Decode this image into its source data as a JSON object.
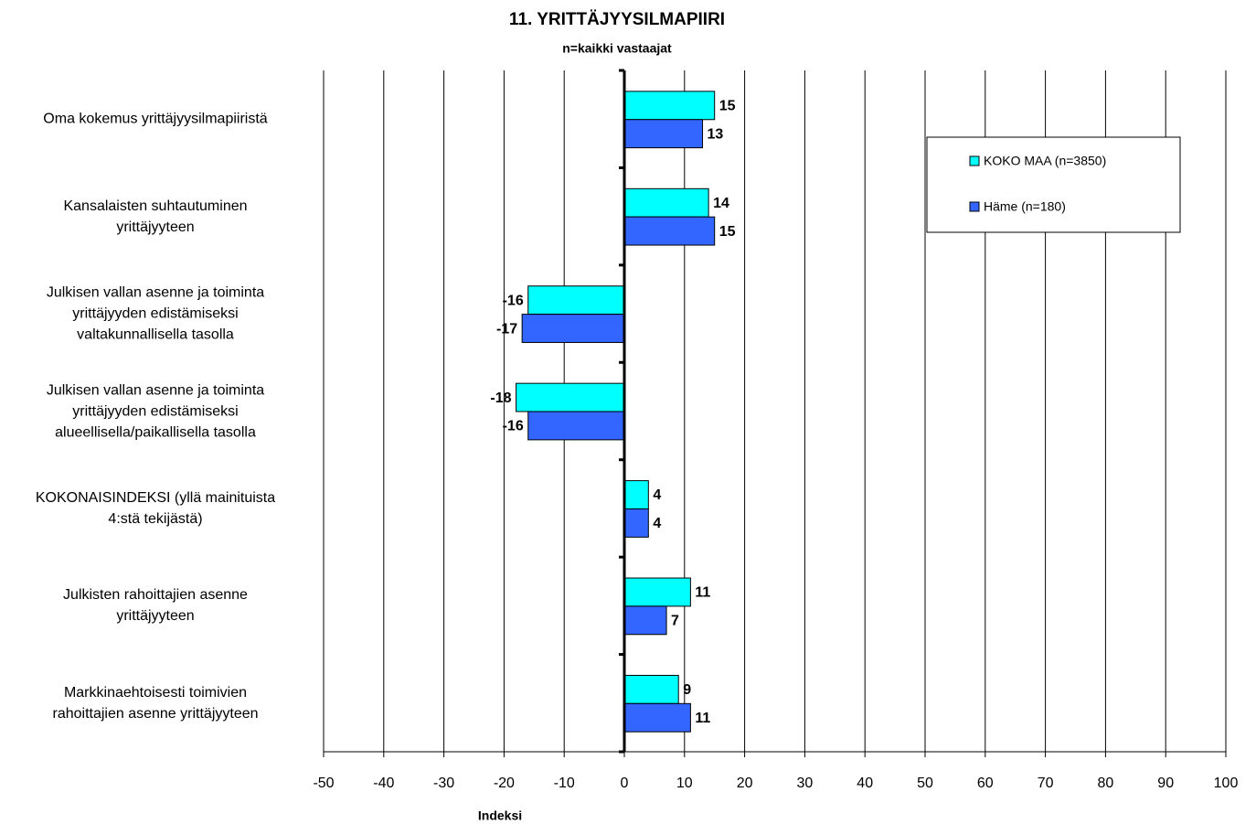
{
  "chart_data": {
    "type": "bar",
    "orientation": "horizontal",
    "title": "11. YRITTÄJYYSILMAPIIRI",
    "subtitle": "n=kaikki vastaajat",
    "x_label": "Indeksi",
    "categories": [
      "Oma kokemus yrittäjyysilmapiiristä",
      "Kansalaisten suhtautuminen\nyrittäjyyteen",
      "Julkisen vallan asenne ja toiminta\nyrittäjyyden edistämiseksi\nvaltakunnallisella tasolla",
      "Julkisen vallan asenne ja toiminta\nyrittäjyyden edistämiseksi\nalueellisella/paikallisella tasolla",
      "KOKONAISINDEKSI (yllä mainituista\n4:stä tekijästä)",
      "Julkisten rahoittajien asenne\nyrittäjyyteen",
      "Markkinaehtoisesti toimivien\nrahoittajien asenne yrittäjyyteen"
    ],
    "series": [
      {
        "name": "KOKO MAA (n=3850)",
        "color": "#00ffff",
        "values": [
          15,
          14,
          -16,
          -18,
          4,
          11,
          9
        ]
      },
      {
        "name": "Häme (n=180)",
        "color": "#3366ff",
        "values": [
          13,
          15,
          -17,
          -16,
          4,
          7,
          11
        ]
      }
    ],
    "xlim": [
      -50,
      100
    ],
    "xticks": [
      -50,
      -40,
      -30,
      -20,
      -10,
      0,
      10,
      20,
      30,
      40,
      50,
      60,
      70,
      80,
      90,
      100
    ],
    "grid": true,
    "legend": "right"
  }
}
